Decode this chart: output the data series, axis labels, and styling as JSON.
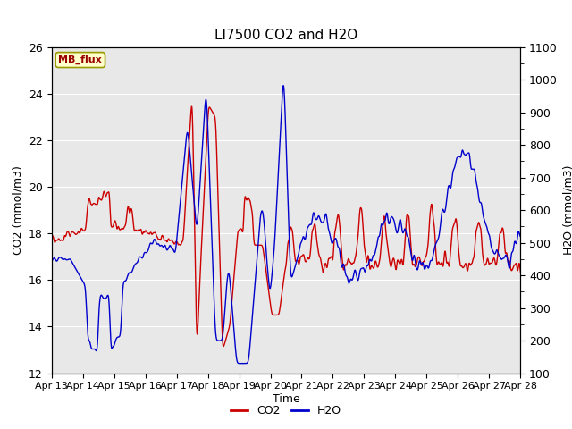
{
  "title": "LI7500 CO2 and H2O",
  "xlabel": "Time",
  "ylabel_left": "CO2 (mmol/m3)",
  "ylabel_right": "H2O (mmol/m3)",
  "ylim_left": [
    12,
    26
  ],
  "ylim_right": [
    100,
    1100
  ],
  "yticks_left": [
    12,
    14,
    16,
    18,
    20,
    22,
    24,
    26
  ],
  "yticks_right": [
    100,
    200,
    300,
    400,
    500,
    600,
    700,
    800,
    900,
    1000,
    1100
  ],
  "x_tick_labels": [
    "Apr 13",
    "Apr 14",
    "Apr 15",
    "Apr 16",
    "Apr 17",
    "Apr 18",
    "Apr 19",
    "Apr 20",
    "Apr 21",
    "Apr 22",
    "Apr 23",
    "Apr 24",
    "Apr 25",
    "Apr 26",
    "Apr 27",
    "Apr 28"
  ],
  "co2_color": "#cc0000",
  "h2o_color": "#0000cc",
  "fig_facecolor": "#ffffff",
  "plot_bg_color": "#e8e8e8",
  "annotation_text": "MB_flux",
  "annotation_bg": "#ffffcc",
  "annotation_border": "#999900",
  "legend_co2": "CO2",
  "legend_h2o": "H2O",
  "grid_color": "#ffffff",
  "title_fontsize": 11,
  "axis_fontsize": 9,
  "tick_fontsize": 8
}
